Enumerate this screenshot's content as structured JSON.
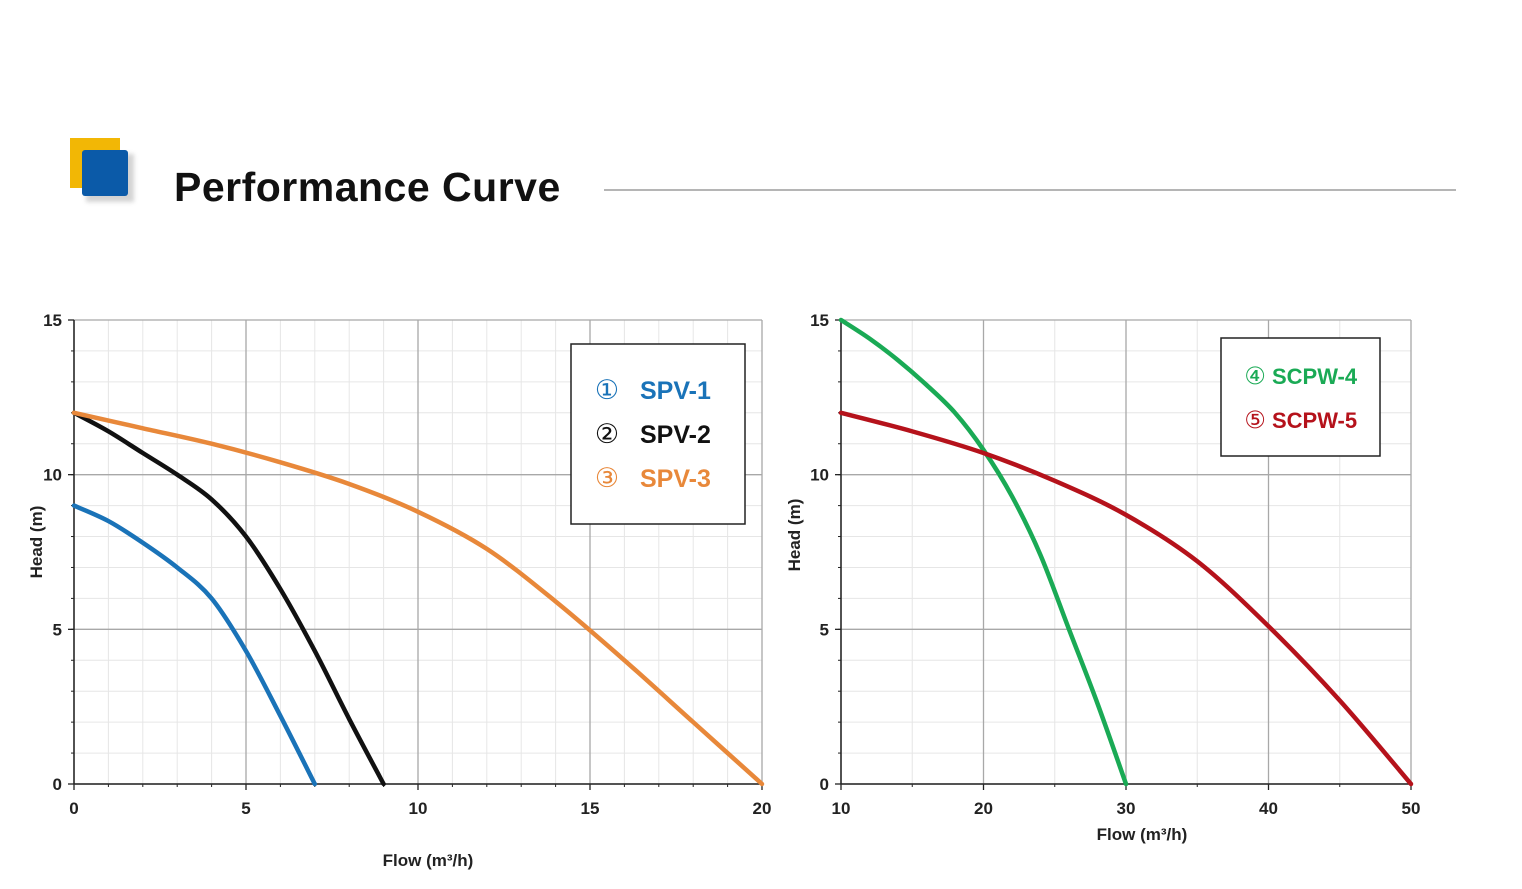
{
  "header": {
    "title": "Performance Curve"
  },
  "chart_data": [
    {
      "type": "line",
      "xlabel": "Flow (m³/h)",
      "ylabel": "Head (m)",
      "xlim": [
        0,
        20
      ],
      "ylim": [
        0,
        15
      ],
      "x_ticks": [
        0,
        5,
        10,
        15,
        20
      ],
      "y_ticks": [
        0,
        5,
        10,
        15
      ],
      "grid": true,
      "legend": "top-right",
      "series": [
        {
          "marker": "①",
          "name": "SPV-1",
          "color": "#1a73b8",
          "x": [
            0,
            1,
            2,
            3,
            4,
            5,
            6,
            7
          ],
          "y": [
            9.0,
            8.5,
            7.8,
            7.0,
            6.0,
            4.3,
            2.2,
            0
          ]
        },
        {
          "marker": "②",
          "name": "SPV-2",
          "color": "#111111",
          "x": [
            0,
            1,
            2,
            3,
            4,
            5,
            6,
            7,
            8,
            9
          ],
          "y": [
            12.0,
            11.4,
            10.7,
            10.0,
            9.2,
            8.0,
            6.3,
            4.3,
            2.1,
            0
          ]
        },
        {
          "marker": "③",
          "name": "SPV-3",
          "color": "#e8883a",
          "x": [
            0,
            2,
            4,
            6,
            8,
            10,
            12,
            14,
            16,
            18,
            20
          ],
          "y": [
            12.0,
            11.5,
            11.0,
            10.4,
            9.7,
            8.8,
            7.6,
            5.9,
            4.0,
            2.0,
            0
          ]
        }
      ]
    },
    {
      "type": "line",
      "xlabel": "Flow (m³/h)",
      "ylabel": "Head (m)",
      "xlim": [
        10,
        50
      ],
      "ylim": [
        0,
        15
      ],
      "x_ticks": [
        10,
        20,
        30,
        40,
        50
      ],
      "y_ticks": [
        0,
        5,
        10,
        15
      ],
      "grid": true,
      "legend": "top-right",
      "series": [
        {
          "marker": "④",
          "name": "SCPW-4",
          "color": "#1aaa55",
          "x": [
            10,
            12,
            14,
            16,
            18,
            20,
            22,
            24,
            26,
            28,
            30
          ],
          "y": [
            15.0,
            14.4,
            13.7,
            12.9,
            12.0,
            10.8,
            9.3,
            7.4,
            5.0,
            2.6,
            0
          ]
        },
        {
          "marker": "⑤",
          "name": "SCPW-5",
          "color": "#b5121b",
          "x": [
            10,
            15,
            20,
            25,
            30,
            35,
            40,
            45,
            50
          ],
          "y": [
            12.0,
            11.4,
            10.7,
            9.8,
            8.7,
            7.2,
            5.1,
            2.7,
            0
          ]
        }
      ]
    }
  ]
}
